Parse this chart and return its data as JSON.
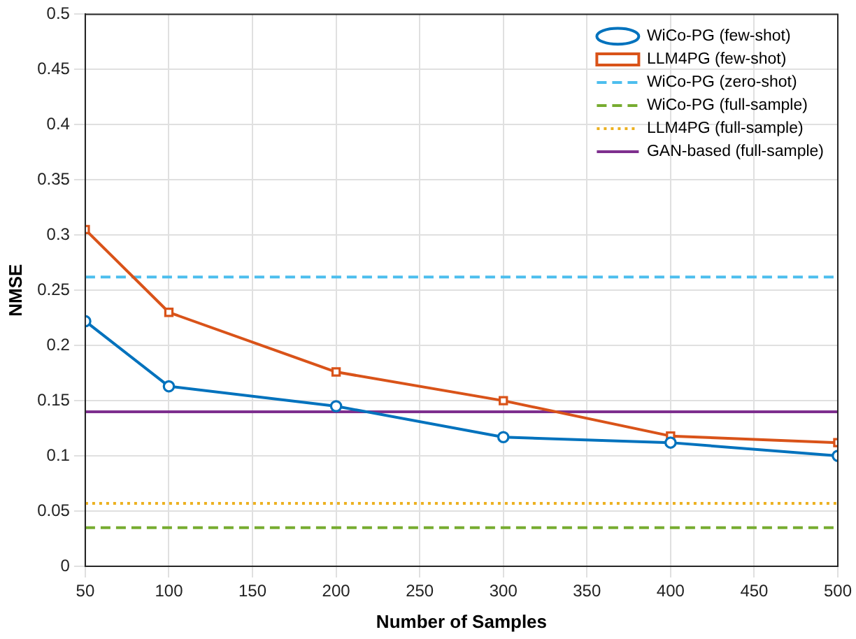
{
  "chart_data": {
    "type": "line",
    "xlabel": "Number of Samples",
    "ylabel": "NMSE",
    "xlim": [
      50,
      500
    ],
    "xticks": [
      50,
      100,
      150,
      200,
      250,
      300,
      350,
      400,
      450,
      500
    ],
    "ylim": [
      0,
      0.5
    ],
    "yticks": [
      0,
      0.05,
      0.1,
      0.15,
      0.2,
      0.25,
      0.3,
      0.35,
      0.4,
      0.45,
      0.5
    ],
    "grid": true,
    "legend": "top right",
    "series": [
      {
        "name": "WiCo-PG (few-shot)",
        "color": "#0072bd",
        "marker": "circle",
        "line_style": "solid",
        "x": [
          50,
          100,
          200,
          300,
          400,
          500
        ],
        "values": [
          0.222,
          0.163,
          0.145,
          0.117,
          0.112,
          0.1
        ]
      },
      {
        "name": "LLM4PG (few-shot)",
        "color": "#d95319",
        "marker": "square",
        "line_style": "solid",
        "x": [
          50,
          100,
          200,
          300,
          400,
          500
        ],
        "values": [
          0.305,
          0.23,
          0.176,
          0.15,
          0.118,
          0.112
        ]
      },
      {
        "name": "WiCo-PG (zero-shot)",
        "color": "#4dbeee",
        "marker": "none",
        "line_style": "dashed",
        "x": [
          50,
          500
        ],
        "values": [
          0.262,
          0.262
        ]
      },
      {
        "name": "WiCo-PG (full-sample)",
        "color": "#77ac30",
        "marker": "none",
        "line_style": "dashed",
        "x": [
          50,
          500
        ],
        "values": [
          0.035,
          0.035
        ]
      },
      {
        "name": "LLM4PG (full-sample)",
        "color": "#edb120",
        "marker": "none",
        "line_style": "dotted",
        "x": [
          50,
          500
        ],
        "values": [
          0.057,
          0.057
        ]
      },
      {
        "name": "GAN-based (full-sample)",
        "color": "#7e2f8e",
        "marker": "none",
        "line_style": "solid",
        "x": [
          50,
          500
        ],
        "values": [
          0.14,
          0.14
        ]
      }
    ]
  }
}
